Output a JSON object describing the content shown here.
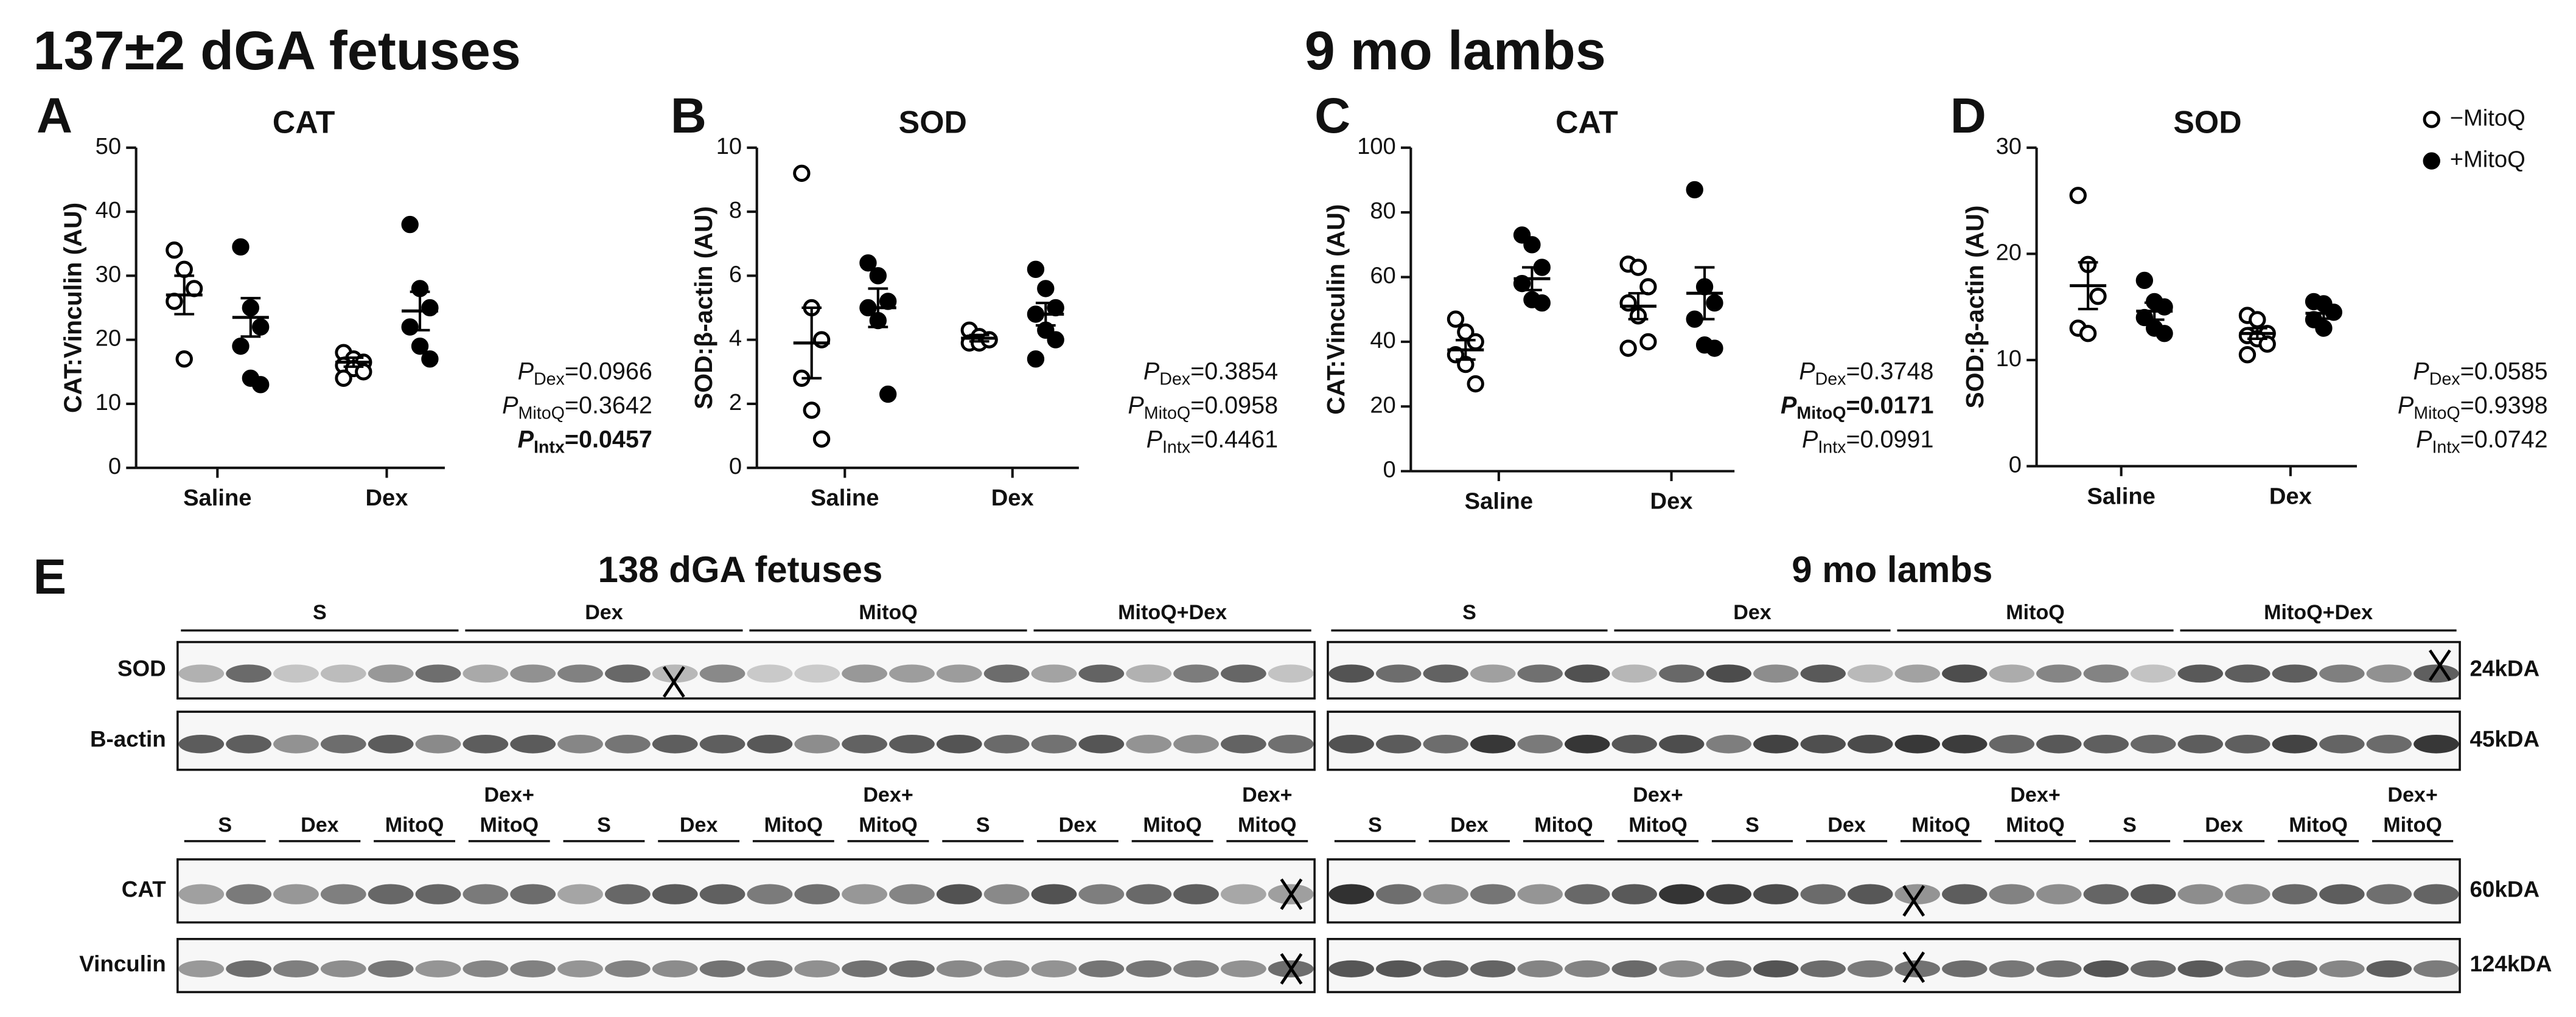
{
  "figure_titles": [
    "137±2 dGA fetuses",
    "9 mo lambs"
  ],
  "chart_data": [
    {
      "type": "dotplot",
      "panel": "A",
      "title": "CAT",
      "ylabel": "CAT:Vinculin (AU)",
      "categories": [
        "Saline",
        "Dex"
      ],
      "ylim": [
        0,
        50
      ],
      "yticks": [
        0,
        10,
        20,
        30,
        40,
        50
      ],
      "series": [
        {
          "name": "−MitoQ",
          "color": "#ffffff",
          "values": [
            [
              34,
              31,
              28,
              26,
              17
            ],
            [
              18,
              17,
              16.5,
              16,
              15.5,
              15,
              14
            ]
          ],
          "mean": [
            27,
            16.5
          ],
          "sem": [
            3,
            0.7
          ]
        },
        {
          "name": "+MitoQ",
          "color": "#000000",
          "values": [
            [
              34.5,
              25,
              22,
              19,
              14,
              13
            ],
            [
              38,
              28,
              25,
              22,
              19,
              17
            ]
          ],
          "mean": [
            23.5,
            24.5
          ],
          "sem": [
            3,
            3
          ]
        }
      ],
      "stats": [
        {
          "p": "P",
          "sub": "Dex",
          "value": "=0.0966",
          "bold": false
        },
        {
          "p": "P",
          "sub": "MitoQ",
          "value": "=0.3642",
          "bold": false
        },
        {
          "p": "P",
          "sub": "Intx",
          "value": "=0.0457",
          "bold": true
        }
      ]
    },
    {
      "type": "dotplot",
      "panel": "B",
      "title": "SOD",
      "ylabel": "SOD:β-actin (AU)",
      "categories": [
        "Saline",
        "Dex"
      ],
      "ylim": [
        0,
        10
      ],
      "yticks": [
        0,
        2,
        4,
        6,
        8,
        10
      ],
      "series": [
        {
          "name": "−MitoQ",
          "color": "#ffffff",
          "values": [
            [
              9.2,
              5,
              4,
              2.8,
              1.8,
              0.9
            ],
            [
              4.3,
              4.1,
              4,
              3.9,
              3.9,
              4
            ]
          ],
          "mean": [
            3.9,
            4.05
          ],
          "sem": [
            1.1,
            0.1
          ]
        },
        {
          "name": "+MitoQ",
          "color": "#000000",
          "values": [
            [
              6.4,
              6,
              5.2,
              5,
              4.6,
              2.3
            ],
            [
              6.2,
              5.6,
              5,
              4.8,
              4.3,
              4,
              3.4
            ]
          ],
          "mean": [
            5,
            4.8
          ],
          "sem": [
            0.6,
            0.35
          ]
        }
      ],
      "stats": [
        {
          "p": "P",
          "sub": "Dex",
          "value": "=0.3854",
          "bold": false
        },
        {
          "p": "P",
          "sub": "MitoQ",
          "value": "=0.0958",
          "bold": false
        },
        {
          "p": "P",
          "sub": "Intx",
          "value": "=0.4461",
          "bold": false
        }
      ]
    },
    {
      "type": "dotplot",
      "panel": "C",
      "title": "CAT",
      "ylabel": "CAT:Vinculin (AU)",
      "categories": [
        "Saline",
        "Dex"
      ],
      "ylim": [
        0,
        100
      ],
      "yticks": [
        0,
        20,
        40,
        60,
        80,
        100
      ],
      "series": [
        {
          "name": "−MitoQ",
          "color": "#ffffff",
          "values": [
            [
              47,
              43,
              40,
              36,
              33,
              27
            ],
            [
              64,
              63,
              57,
              52,
              48,
              40,
              38
            ]
          ],
          "mean": [
            37.5,
            51
          ],
          "sem": [
            3,
            4
          ]
        },
        {
          "name": "+MitoQ",
          "color": "#000000",
          "values": [
            [
              73,
              70,
              63,
              58,
              53,
              52
            ],
            [
              87,
              57,
              52,
              47,
              39,
              38
            ]
          ],
          "mean": [
            59.5,
            55
          ],
          "sem": [
            3.5,
            8
          ]
        }
      ],
      "stats": [
        {
          "p": "P",
          "sub": "Dex",
          "value": "=0.3748",
          "bold": false
        },
        {
          "p": "P",
          "sub": "MitoQ",
          "value": "=0.0171",
          "bold": true
        },
        {
          "p": "P",
          "sub": "Intx",
          "value": "=0.0991",
          "bold": false
        }
      ]
    },
    {
      "type": "dotplot",
      "panel": "D",
      "title": "SOD",
      "ylabel": "SOD:β-actin (AU)",
      "categories": [
        "Saline",
        "Dex"
      ],
      "ylim": [
        0,
        30
      ],
      "yticks": [
        0,
        10,
        20,
        30
      ],
      "series": [
        {
          "name": "−MitoQ",
          "color": "#ffffff",
          "values": [
            [
              25.5,
              19,
              16,
              13,
              12.5
            ],
            [
              14.2,
              13.8,
              12.5,
              12.3,
              12,
              11.5,
              10.5
            ]
          ],
          "mean": [
            17,
            12.5
          ],
          "sem": [
            2.2,
            0.5
          ]
        },
        {
          "name": "+MitoQ",
          "color": "#000000",
          "values": [
            [
              17.5,
              15.5,
              15,
              14,
              13,
              12.5
            ],
            [
              15.5,
              15.3,
              14.5,
              13.8,
              13
            ]
          ],
          "mean": [
            14.6,
            14.4
          ],
          "sem": [
            0.8,
            0.5
          ]
        }
      ],
      "stats": [
        {
          "p": "P",
          "sub": "Dex",
          "value": "=0.0585",
          "bold": false
        },
        {
          "p": "P",
          "sub": "MitoQ",
          "value": "=0.9398",
          "bold": false
        },
        {
          "p": "P",
          "sub": "Intx",
          "value": "=0.0742",
          "bold": false
        }
      ]
    }
  ],
  "blots": {
    "letter": "E",
    "groups": [
      {
        "title": "138 dGA fetuses",
        "top_groups": [
          "S",
          "Dex",
          "MitoQ",
          "MitoQ+Dex"
        ],
        "sub_labels": [
          [
            "S"
          ],
          [
            "Dex"
          ],
          [
            "MitoQ"
          ],
          [
            "Dex+",
            "MitoQ"
          ],
          [
            "S"
          ],
          [
            "Dex"
          ],
          [
            "MitoQ"
          ],
          [
            "Dex+",
            "MitoQ"
          ],
          [
            "S"
          ],
          [
            "Dex"
          ],
          [
            "MitoQ"
          ],
          [
            "Dex+",
            "MitoQ"
          ]
        ],
        "rows": [
          {
            "label": "SOD",
            "kda": "24kDA"
          },
          {
            "label": "B-actin",
            "kda": "45kDA"
          },
          {
            "label": "CAT",
            "kda": "60kDA"
          },
          {
            "label": "Vinculin",
            "kda": "124kDA"
          }
        ]
      },
      {
        "title": "9 mo lambs",
        "top_groups": [
          "S",
          "Dex",
          "MitoQ",
          "MitoQ+Dex"
        ],
        "sub_labels": [
          [
            "S"
          ],
          [
            "Dex"
          ],
          [
            "MitoQ"
          ],
          [
            "Dex+",
            "MitoQ"
          ],
          [
            "S"
          ],
          [
            "Dex"
          ],
          [
            "MitoQ"
          ],
          [
            "Dex+",
            "MitoQ"
          ],
          [
            "S"
          ],
          [
            "Dex"
          ],
          [
            "MitoQ"
          ],
          [
            "Dex+",
            "MitoQ"
          ]
        ]
      }
    ]
  }
}
